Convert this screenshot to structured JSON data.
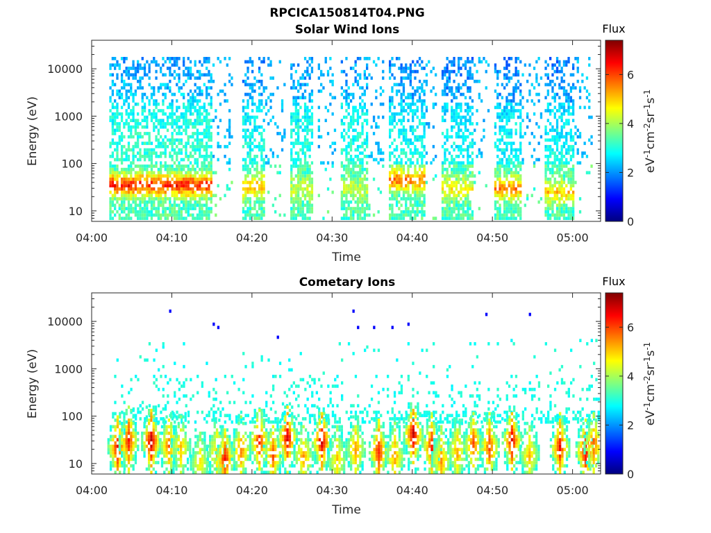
{
  "figure_title": "RPCICA150814T04.PNG",
  "colorbar": {
    "title": "Flux",
    "ticks": [
      "0",
      "2",
      "4",
      "6"
    ],
    "tick_values": [
      0,
      2,
      4,
      6
    ],
    "range": [
      0,
      7.4
    ],
    "colormap": "jet"
  },
  "chart_data": [
    {
      "type": "heatmap",
      "title": "Solar Wind Ions",
      "xlabel": "Time",
      "ylabel": "Energy (eV)",
      "x_tick_labels": [
        "04:00",
        "04:10",
        "04:20",
        "04:30",
        "04:40",
        "04:50",
        "05:00"
      ],
      "x_tick_minutes": [
        0,
        10,
        20,
        30,
        40,
        50,
        60
      ],
      "y_tick_labels": [
        "10",
        "100",
        "1000",
        "10000"
      ],
      "y_tick_values": [
        10,
        100,
        1000,
        10000
      ],
      "xlim_minutes": [
        0,
        63.5
      ],
      "ylim_eV": [
        6,
        40000
      ],
      "y_scale": "log",
      "colorbar_label": "eV-1cm-2sr-1s-1",
      "bursts": [
        {
          "start_min": 2.2,
          "end_min": 15,
          "peak_eV": 35,
          "peak_flux": 6.3,
          "high_flux": 2.4
        },
        {
          "start_min": 18.5,
          "end_min": 21.5,
          "peak_eV": 33,
          "peak_flux": 5.1,
          "high_flux": 2.2
        },
        {
          "start_min": 24.5,
          "end_min": 27.5,
          "peak_eV": 30,
          "peak_flux": 4.2,
          "high_flux": 2.3
        },
        {
          "start_min": 31,
          "end_min": 34.5,
          "peak_eV": 30,
          "peak_flux": 4.2,
          "high_flux": 2.3
        },
        {
          "start_min": 37,
          "end_min": 41.5,
          "peak_eV": 45,
          "peak_flux": 5.6,
          "high_flux": 2.2
        },
        {
          "start_min": 43.5,
          "end_min": 47.5,
          "peak_eV": 30,
          "peak_flux": 4.6,
          "high_flux": 2.1
        },
        {
          "start_min": 50,
          "end_min": 53.5,
          "peak_eV": 30,
          "peak_flux": 5.6,
          "high_flux": 2.1
        },
        {
          "start_min": 56.5,
          "end_min": 60,
          "peak_eV": 25,
          "peak_flux": 4.9,
          "high_flux": 2.1
        }
      ],
      "sparse_after_min": [
        15,
        17.5,
        21.5,
        24,
        28,
        30.5,
        34.5,
        36.5,
        41.5,
        43,
        47.5,
        49.5,
        53.5,
        56,
        60,
        62.5
      ]
    },
    {
      "type": "heatmap",
      "title": "Cometary Ions",
      "xlabel": "Time",
      "ylabel": "Energy (eV)",
      "x_tick_labels": [
        "04:00",
        "04:10",
        "04:20",
        "04:30",
        "04:40",
        "04:50",
        "05:00"
      ],
      "x_tick_minutes": [
        0,
        10,
        20,
        30,
        40,
        50,
        60
      ],
      "y_tick_labels": [
        "10",
        "100",
        "1000",
        "10000"
      ],
      "y_tick_values": [
        10,
        100,
        1000,
        10000
      ],
      "xlim_minutes": [
        0,
        63.5
      ],
      "ylim_eV": [
        6,
        40000
      ],
      "y_scale": "log",
      "colorbar_label": "eV-1cm-2sr-1s-1",
      "clusters": [
        {
          "t_min": 3.1,
          "peak_eV": 22,
          "peak_flux": 6.5
        },
        {
          "t_min": 4.5,
          "peak_eV": 30,
          "peak_flux": 6.3
        },
        {
          "t_min": 7.3,
          "peak_eV": 30,
          "peak_flux": 6.9
        },
        {
          "t_min": 9.5,
          "peak_eV": 25,
          "peak_flux": 5.6
        },
        {
          "t_min": 11,
          "peak_eV": 22,
          "peak_flux": 5.0
        },
        {
          "t_min": 13.4,
          "peak_eV": 10,
          "peak_flux": 4.6
        },
        {
          "t_min": 15.5,
          "peak_eV": 18,
          "peak_flux": 4.9
        },
        {
          "t_min": 16.5,
          "peak_eV": 12,
          "peak_flux": 6.3
        },
        {
          "t_min": 18.5,
          "peak_eV": 20,
          "peak_flux": 5.5
        },
        {
          "t_min": 20.8,
          "peak_eV": 30,
          "peak_flux": 6.3
        },
        {
          "t_min": 22.5,
          "peak_eV": 15,
          "peak_flux": 5.8
        },
        {
          "t_min": 24.3,
          "peak_eV": 35,
          "peak_flux": 6.7
        },
        {
          "t_min": 26.3,
          "peak_eV": 14,
          "peak_flux": 5.3
        },
        {
          "t_min": 28.6,
          "peak_eV": 30,
          "peak_flux": 6.8
        },
        {
          "t_min": 30.5,
          "peak_eV": 12,
          "peak_flux": 4.9
        },
        {
          "t_min": 32.8,
          "peak_eV": 20,
          "peak_flux": 5.3
        },
        {
          "t_min": 35.7,
          "peak_eV": 18,
          "peak_flux": 6.3
        },
        {
          "t_min": 37.7,
          "peak_eV": 14,
          "peak_flux": 5.3
        },
        {
          "t_min": 40,
          "peak_eV": 40,
          "peak_flux": 6.8
        },
        {
          "t_min": 42.3,
          "peak_eV": 22,
          "peak_flux": 6.2
        },
        {
          "t_min": 43.5,
          "peak_eV": 12,
          "peak_flux": 5.3
        },
        {
          "t_min": 45.5,
          "peak_eV": 18,
          "peak_flux": 5.2
        },
        {
          "t_min": 47.5,
          "peak_eV": 25,
          "peak_flux": 5.8
        },
        {
          "t_min": 49.5,
          "peak_eV": 22,
          "peak_flux": 5.9
        },
        {
          "t_min": 52.3,
          "peak_eV": 30,
          "peak_flux": 6.6
        },
        {
          "t_min": 54.5,
          "peak_eV": 15,
          "peak_flux": 5.0
        },
        {
          "t_min": 58.3,
          "peak_eV": 22,
          "peak_flux": 6.3
        },
        {
          "t_min": 61.5,
          "peak_eV": 18,
          "peak_flux": 6.6
        },
        {
          "t_min": 62.5,
          "peak_eV": 25,
          "peak_flux": 5.8
        }
      ]
    }
  ]
}
